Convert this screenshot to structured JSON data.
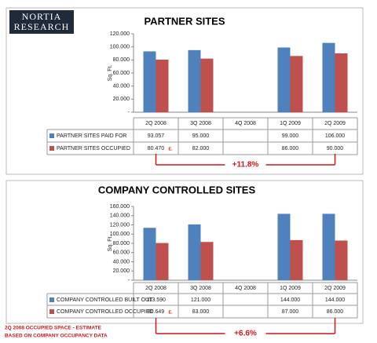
{
  "logo": [
    "NORTIA",
    "RESEARCH"
  ],
  "footnote": [
    "2Q 2008 OCCUPIED SPACE - ESTIMATE",
    "BASED ON COMPANY OCCUPANCY DATA"
  ],
  "chart_data": [
    {
      "type": "bar",
      "title": "PARTNER SITES",
      "y_label": "Sq. Ft.",
      "categories": [
        "2Q 2008",
        "3Q 2008",
        "4Q 2008",
        "1Q 2009",
        "2Q 2009"
      ],
      "series": [
        {
          "name": "PARTNER SITES PAID FOR",
          "color": "#4f81bd",
          "values": [
            93057,
            95000,
            null,
            99000,
            106000
          ],
          "value_labels": [
            "93.057",
            "95.000",
            null,
            "99.000",
            "106.000"
          ]
        },
        {
          "name": "PARTNER SITES OCCUPIED",
          "color": "#c0504d",
          "values": [
            80470,
            82000,
            null,
            86000,
            90000
          ],
          "value_labels": [
            "80.470",
            "82.000",
            null,
            "86.000",
            "90.000"
          ]
        }
      ],
      "ylim": [
        0,
        120000
      ],
      "yticks": [
        {
          "value": 0,
          "label": "-"
        },
        {
          "value": 20000,
          "label": "20.000"
        },
        {
          "value": 40000,
          "label": "40.000"
        },
        {
          "value": 60000,
          "label": "60.000"
        },
        {
          "value": 80000,
          "label": "80.000"
        },
        {
          "value": 100000,
          "label": "100.000"
        },
        {
          "value": 120000,
          "label": "120.000"
        }
      ],
      "estimate_mark": "E.",
      "change": "+11.8%"
    },
    {
      "type": "bar",
      "title": "COMPANY CONTROLLED SITES",
      "y_label": "Sq. Ft.",
      "categories": [
        "2Q 2008",
        "3Q 2008",
        "4Q 2008",
        "1Q 2009",
        "2Q 2009"
      ],
      "series": [
        {
          "name": "COMPANY CONTROLLED BUILT OUT",
          "color": "#4f81bd",
          "values": [
            113590,
            121000,
            null,
            144000,
            144000
          ],
          "value_labels": [
            "113.590",
            "121.000",
            null,
            "144.000",
            "144.000"
          ]
        },
        {
          "name": "COMPANY CONTROLLED OCCUPIED",
          "color": "#c0504d",
          "values": [
            80649,
            83000,
            null,
            87000,
            86000
          ],
          "value_labels": [
            "80.649",
            "83.000",
            null,
            "87.000",
            "86.000"
          ]
        }
      ],
      "ylim": [
        0,
        160000
      ],
      "yticks": [
        {
          "value": 0,
          "label": "-"
        },
        {
          "value": 20000,
          "label": "20.000"
        },
        {
          "value": 40000,
          "label": "40.000"
        },
        {
          "value": 60000,
          "label": "60.000"
        },
        {
          "value": 80000,
          "label": "80.000"
        },
        {
          "value": 100000,
          "label": "100.000"
        },
        {
          "value": 120000,
          "label": "120.000"
        },
        {
          "value": 140000,
          "label": "140.000"
        },
        {
          "value": 160000,
          "label": "160.000"
        }
      ],
      "estimate_mark": "E.",
      "change": "+6.6%"
    }
  ]
}
